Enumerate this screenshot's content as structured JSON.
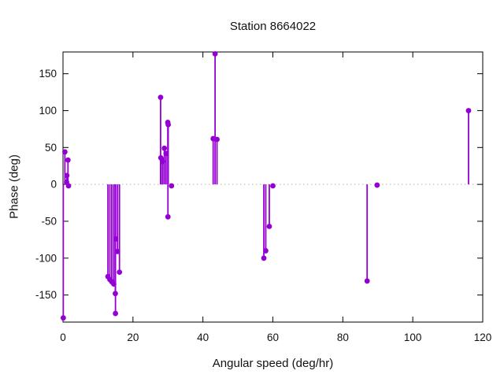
{
  "chart_data": {
    "type": "stem",
    "title": "Station 8664022",
    "xlabel": "Angular speed (deg/hr)",
    "ylabel": "Phase (deg)",
    "xlim": [
      0,
      120
    ],
    "ylim": [
      -186.7,
      179.5
    ],
    "xticks": [
      0,
      20,
      40,
      60,
      80,
      100,
      120
    ],
    "yticks": [
      -150,
      -100,
      -50,
      0,
      50,
      100,
      150
    ],
    "grid": false,
    "legend": "none",
    "zero_line": true,
    "zero_line_color": "#b4b4b4",
    "series_color": "#9400d3",
    "border_color": "#000000",
    "points": [
      [
        0.08,
        -181
      ],
      [
        0.54,
        44
      ],
      [
        1.02,
        3
      ],
      [
        1.1,
        12
      ],
      [
        1.42,
        33
      ],
      [
        1.58,
        -2
      ],
      [
        12.85,
        -125
      ],
      [
        13.4,
        -129
      ],
      [
        13.94,
        -132
      ],
      [
        14.5,
        -135
      ],
      [
        14.96,
        -148
      ],
      [
        15.0,
        -175
      ],
      [
        15.04,
        -74
      ],
      [
        15.59,
        -91
      ],
      [
        16.14,
        -119
      ],
      [
        27.9,
        118
      ],
      [
        27.97,
        36
      ],
      [
        28.44,
        33
      ],
      [
        28.51,
        31
      ],
      [
        28.98,
        49
      ],
      [
        29.46,
        42
      ],
      [
        29.96,
        84
      ],
      [
        30.0,
        -44
      ],
      [
        30.08,
        81
      ],
      [
        31.02,
        -2
      ],
      [
        42.93,
        62
      ],
      [
        43.48,
        177
      ],
      [
        44.03,
        61
      ],
      [
        57.42,
        -100
      ],
      [
        57.97,
        -90
      ],
      [
        58.98,
        -57
      ],
      [
        60.0,
        -2
      ],
      [
        86.95,
        -131
      ],
      [
        89.8,
        -1
      ],
      [
        115.94,
        100
      ]
    ]
  }
}
